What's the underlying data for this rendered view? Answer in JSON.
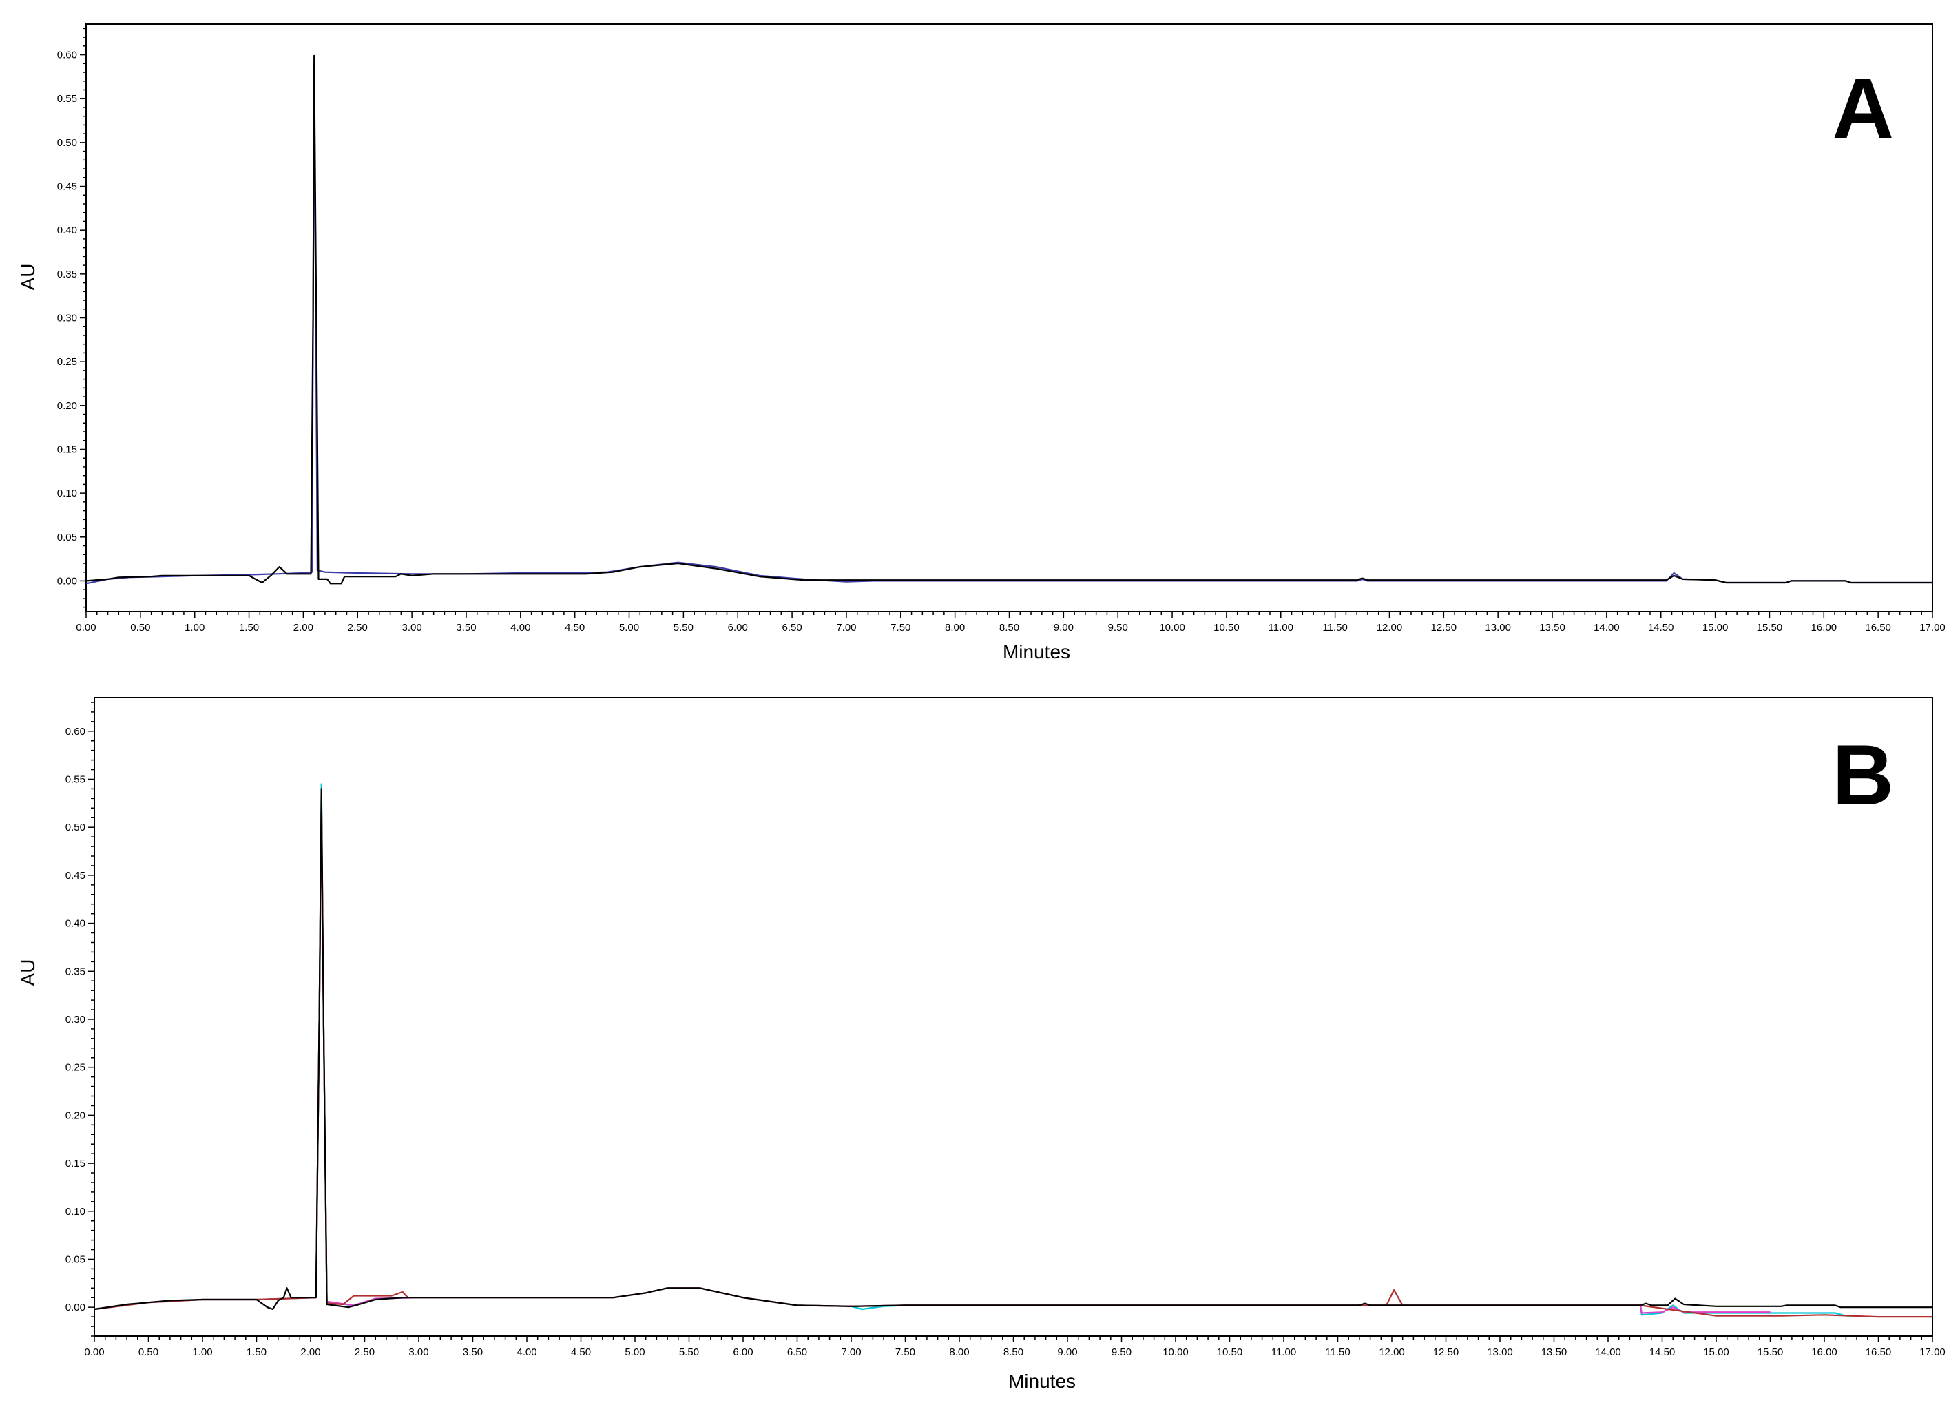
{
  "chart_data": [
    {
      "type": "line",
      "panel_label": "A",
      "xlabel": "Minutes",
      "ylabel": "AU",
      "xlim": [
        0,
        17
      ],
      "ylim": [
        -0.035,
        0.635
      ],
      "x_ticks": [
        "0.00",
        "0.50",
        "1.00",
        "1.50",
        "2.00",
        "2.50",
        "3.00",
        "3.50",
        "4.00",
        "4.50",
        "5.00",
        "5.50",
        "6.00",
        "6.50",
        "7.00",
        "7.50",
        "8.00",
        "8.50",
        "9.00",
        "9.50",
        "10.00",
        "10.50",
        "11.00",
        "11.50",
        "12.00",
        "12.50",
        "13.00",
        "13.50",
        "14.00",
        "14.50",
        "15.00",
        "15.50",
        "16.00",
        "16.50",
        "17.00"
      ],
      "y_ticks": [
        "0.00",
        "0.05",
        "0.10",
        "0.15",
        "0.20",
        "0.25",
        "0.30",
        "0.35",
        "0.40",
        "0.45",
        "0.50",
        "0.55",
        "0.60"
      ],
      "grid": false,
      "series": [
        {
          "color": "#3a3aa8",
          "points": [
            [
              0,
              -0.003
            ],
            [
              0.2,
              0.002
            ],
            [
              0.4,
              0.004
            ],
            [
              0.7,
              0.005
            ],
            [
              1.0,
              0.006
            ],
            [
              1.5,
              0.007
            ],
            [
              1.75,
              0.008
            ],
            [
              2.0,
              0.009
            ],
            [
              2.08,
              0.01
            ],
            [
              2.1,
              0.59
            ],
            [
              2.13,
              0.012
            ],
            [
              2.2,
              0.01
            ],
            [
              2.5,
              0.009
            ],
            [
              3.0,
              0.008
            ],
            [
              3.5,
              0.008
            ],
            [
              4.0,
              0.009
            ],
            [
              4.5,
              0.009
            ],
            [
              4.8,
              0.01
            ],
            [
              5.1,
              0.016
            ],
            [
              5.45,
              0.021
            ],
            [
              5.8,
              0.016
            ],
            [
              6.2,
              0.006
            ],
            [
              6.6,
              0.002
            ],
            [
              7.0,
              -0.001
            ],
            [
              7.25,
              0.0
            ],
            [
              7.5,
              0.0
            ],
            [
              11.7,
              0.0
            ],
            [
              11.75,
              0.002
            ],
            [
              11.8,
              0.0
            ],
            [
              14.55,
              0.0
            ],
            [
              14.62,
              0.009
            ],
            [
              14.7,
              0.002
            ],
            [
              15.0,
              0.001
            ],
            [
              15.1,
              -0.002
            ],
            [
              15.65,
              -0.002
            ],
            [
              15.7,
              0.0
            ],
            [
              16.2,
              0.0
            ],
            [
              16.25,
              -0.002
            ],
            [
              17.0,
              -0.002
            ]
          ]
        },
        {
          "color": "#000000",
          "points": [
            [
              0,
              0.0
            ],
            [
              0.2,
              0.002
            ],
            [
              0.3,
              0.004
            ],
            [
              0.6,
              0.005
            ],
            [
              0.7,
              0.006
            ],
            [
              1.2,
              0.006
            ],
            [
              1.5,
              0.006
            ],
            [
              1.62,
              -0.002
            ],
            [
              1.7,
              0.006
            ],
            [
              1.78,
              0.016
            ],
            [
              1.85,
              0.008
            ],
            [
              2.07,
              0.008
            ],
            [
              2.09,
              0.3
            ],
            [
              2.1,
              0.599
            ],
            [
              2.12,
              0.3
            ],
            [
              2.14,
              0.002
            ],
            [
              2.22,
              0.002
            ],
            [
              2.25,
              -0.003
            ],
            [
              2.35,
              -0.003
            ],
            [
              2.38,
              0.005
            ],
            [
              2.85,
              0.005
            ],
            [
              2.9,
              0.008
            ],
            [
              3.0,
              0.006
            ],
            [
              3.2,
              0.008
            ],
            [
              4.0,
              0.008
            ],
            [
              4.6,
              0.008
            ],
            [
              4.85,
              0.01
            ],
            [
              5.1,
              0.016
            ],
            [
              5.45,
              0.02
            ],
            [
              5.8,
              0.014
            ],
            [
              6.2,
              0.005
            ],
            [
              6.6,
              0.001
            ],
            [
              7.0,
              0.001
            ],
            [
              7.5,
              0.001
            ],
            [
              11.7,
              0.001
            ],
            [
              11.75,
              0.003
            ],
            [
              11.8,
              0.001
            ],
            [
              14.55,
              0.001
            ],
            [
              14.62,
              0.006
            ],
            [
              14.7,
              0.002
            ],
            [
              15.0,
              0.001
            ],
            [
              15.1,
              -0.002
            ],
            [
              15.65,
              -0.002
            ],
            [
              15.7,
              0.0
            ],
            [
              16.2,
              0.0
            ],
            [
              16.25,
              -0.002
            ],
            [
              17.0,
              -0.002
            ]
          ]
        }
      ]
    },
    {
      "type": "line",
      "panel_label": "B",
      "xlabel": "Minutes",
      "ylabel": "AU",
      "xlim": [
        0,
        17
      ],
      "ylim": [
        -0.03,
        0.635
      ],
      "x_ticks": [
        "0.00",
        "0.50",
        "1.00",
        "1.50",
        "2.00",
        "2.50",
        "3.00",
        "3.50",
        "4.00",
        "4.50",
        "5.00",
        "5.50",
        "6.00",
        "6.50",
        "7.00",
        "7.50",
        "8.00",
        "8.50",
        "9.00",
        "9.50",
        "10.00",
        "10.50",
        "11.00",
        "11.50",
        "12.00",
        "12.50",
        "13.00",
        "13.50",
        "14.00",
        "14.50",
        "15.00",
        "15.50",
        "16.00",
        "16.50",
        "17.00"
      ],
      "y_ticks": [
        "0.00",
        "0.05",
        "0.10",
        "0.15",
        "0.20",
        "0.25",
        "0.30",
        "0.35",
        "0.40",
        "0.45",
        "0.50",
        "0.55",
        "0.60"
      ],
      "grid": false,
      "series": [
        {
          "color": "#00c8d8",
          "points": [
            [
              0,
              -0.002
            ],
            [
              0.5,
              0.005
            ],
            [
              1.0,
              0.008
            ],
            [
              1.5,
              0.008
            ],
            [
              2.05,
              0.01
            ],
            [
              2.08,
              0.3
            ],
            [
              2.1,
              0.545
            ],
            [
              2.12,
              0.3
            ],
            [
              2.15,
              0.005
            ],
            [
              2.4,
              0.002
            ],
            [
              2.6,
              0.009
            ],
            [
              3.0,
              0.01
            ],
            [
              4.0,
              0.01
            ],
            [
              4.8,
              0.01
            ],
            [
              5.1,
              0.015
            ],
            [
              5.3,
              0.02
            ],
            [
              5.6,
              0.02
            ],
            [
              6.0,
              0.01
            ],
            [
              6.5,
              0.002
            ],
            [
              7.0,
              0.001
            ],
            [
              7.1,
              -0.002
            ],
            [
              7.3,
              0.001
            ],
            [
              7.5,
              0.002
            ],
            [
              11.7,
              0.002
            ],
            [
              11.75,
              0.004
            ],
            [
              11.8,
              0.002
            ],
            [
              14.3,
              0.002
            ],
            [
              14.31,
              -0.008
            ],
            [
              14.5,
              -0.006
            ],
            [
              14.6,
              0.002
            ],
            [
              14.7,
              -0.006
            ],
            [
              15.0,
              -0.006
            ],
            [
              16.1,
              -0.006
            ],
            [
              16.2,
              -0.009
            ],
            [
              16.25,
              -0.009
            ]
          ]
        },
        {
          "color": "#e040c8",
          "points": [
            [
              0,
              -0.002
            ],
            [
              0.5,
              0.005
            ],
            [
              1.0,
              0.008
            ],
            [
              1.5,
              0.008
            ],
            [
              2.05,
              0.01
            ],
            [
              2.08,
              0.3
            ],
            [
              2.1,
              0.52
            ],
            [
              2.12,
              0.3
            ],
            [
              2.15,
              0.006
            ],
            [
              2.4,
              0.002
            ],
            [
              2.6,
              0.009
            ],
            [
              3.0,
              0.01
            ],
            [
              4.0,
              0.01
            ],
            [
              4.8,
              0.01
            ],
            [
              5.1,
              0.015
            ],
            [
              5.3,
              0.02
            ],
            [
              5.6,
              0.02
            ],
            [
              6.0,
              0.01
            ],
            [
              6.5,
              0.002
            ],
            [
              7.0,
              0.001
            ],
            [
              7.5,
              0.002
            ],
            [
              11.7,
              0.002
            ],
            [
              11.75,
              0.004
            ],
            [
              11.8,
              0.002
            ],
            [
              14.3,
              0.002
            ],
            [
              14.31,
              -0.006
            ],
            [
              14.5,
              -0.005
            ],
            [
              14.6,
              0.0
            ],
            [
              14.7,
              -0.005
            ],
            [
              15.0,
              -0.005
            ],
            [
              15.5,
              -0.005
            ]
          ]
        },
        {
          "color": "#b03030",
          "points": [
            [
              0,
              -0.002
            ],
            [
              0.5,
              0.005
            ],
            [
              1.0,
              0.008
            ],
            [
              1.5,
              0.008
            ],
            [
              2.05,
              0.01
            ],
            [
              2.08,
              0.3
            ],
            [
              2.1,
              0.53
            ],
            [
              2.12,
              0.3
            ],
            [
              2.15,
              0.004
            ],
            [
              2.3,
              0.003
            ],
            [
              2.4,
              0.012
            ],
            [
              2.6,
              0.012
            ],
            [
              2.75,
              0.012
            ],
            [
              2.85,
              0.016
            ],
            [
              2.9,
              0.01
            ],
            [
              3.0,
              0.01
            ],
            [
              4.0,
              0.01
            ],
            [
              4.8,
              0.01
            ],
            [
              5.1,
              0.015
            ],
            [
              5.3,
              0.02
            ],
            [
              5.6,
              0.02
            ],
            [
              6.0,
              0.01
            ],
            [
              6.5,
              0.002
            ],
            [
              7.0,
              0.001
            ],
            [
              7.5,
              0.002
            ],
            [
              11.95,
              0.002
            ],
            [
              12.02,
              0.018
            ],
            [
              12.1,
              0.002
            ],
            [
              14.3,
              0.002
            ],
            [
              15.0,
              -0.009
            ],
            [
              15.6,
              -0.009
            ],
            [
              16.0,
              -0.008
            ],
            [
              16.5,
              -0.01
            ],
            [
              17.0,
              -0.01
            ]
          ]
        },
        {
          "color": "#000000",
          "points": [
            [
              0,
              -0.002
            ],
            [
              0.3,
              0.003
            ],
            [
              0.5,
              0.005
            ],
            [
              0.7,
              0.007
            ],
            [
              1.0,
              0.008
            ],
            [
              1.5,
              0.008
            ],
            [
              1.6,
              0.0
            ],
            [
              1.65,
              -0.002
            ],
            [
              1.7,
              0.007
            ],
            [
              1.75,
              0.01
            ],
            [
              1.78,
              0.02
            ],
            [
              1.82,
              0.01
            ],
            [
              2.05,
              0.01
            ],
            [
              2.08,
              0.3
            ],
            [
              2.1,
              0.54
            ],
            [
              2.12,
              0.3
            ],
            [
              2.15,
              0.003
            ],
            [
              2.35,
              0.0
            ],
            [
              2.45,
              0.003
            ],
            [
              2.6,
              0.008
            ],
            [
              2.85,
              0.01
            ],
            [
              3.0,
              0.01
            ],
            [
              4.0,
              0.01
            ],
            [
              4.8,
              0.01
            ],
            [
              5.1,
              0.015
            ],
            [
              5.3,
              0.02
            ],
            [
              5.6,
              0.02
            ],
            [
              6.0,
              0.01
            ],
            [
              6.5,
              0.002
            ],
            [
              7.0,
              0.001
            ],
            [
              7.5,
              0.002
            ],
            [
              11.7,
              0.002
            ],
            [
              11.75,
              0.004
            ],
            [
              11.8,
              0.002
            ],
            [
              14.3,
              0.002
            ],
            [
              14.35,
              0.004
            ],
            [
              14.4,
              0.002
            ],
            [
              14.55,
              0.002
            ],
            [
              14.62,
              0.009
            ],
            [
              14.7,
              0.003
            ],
            [
              15.0,
              0.001
            ],
            [
              15.6,
              0.001
            ],
            [
              15.65,
              0.002
            ],
            [
              16.1,
              0.002
            ],
            [
              16.15,
              0.0
            ],
            [
              17.0,
              0.0
            ]
          ]
        }
      ]
    }
  ]
}
